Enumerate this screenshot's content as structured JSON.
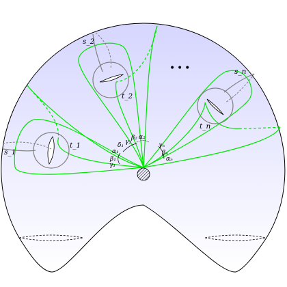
{
  "diagram": {
    "colors": {
      "curve": "#00e600",
      "handle": "#808080",
      "surface_top": "#d6d6ff",
      "surface_bottom": "#ffffff",
      "outline": "#000000"
    },
    "handles": [
      {
        "id": "1",
        "s": "s_1",
        "t": "t_1"
      },
      {
        "id": "2",
        "s": "s_2",
        "t": "t_2"
      },
      {
        "id": "n",
        "s": "s_n",
        "t": "t_n"
      }
    ],
    "ellipsis": "• • •",
    "angle_labels": [
      {
        "id": "g1",
        "text": "γ₁"
      },
      {
        "id": "b1",
        "text": "β₁"
      },
      {
        "id": "a1",
        "text": "α₁"
      },
      {
        "id": "d1",
        "text": "δ₁"
      },
      {
        "id": "g2",
        "text": "γ₂"
      },
      {
        "id": "b2",
        "text": "β₂"
      },
      {
        "id": "a2",
        "text": "α₂"
      },
      {
        "id": "gn",
        "text": "γₙ"
      },
      {
        "id": "bn",
        "text": "βₙ"
      },
      {
        "id": "an",
        "text": "αₙ"
      }
    ]
  }
}
